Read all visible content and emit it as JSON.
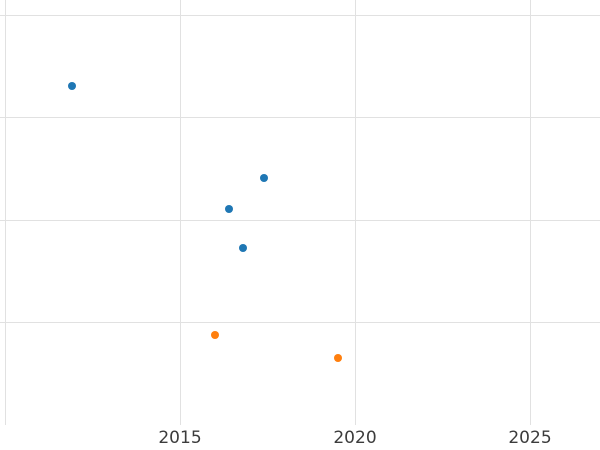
{
  "chart_data": {
    "type": "scatter",
    "title": "",
    "xlabel": "",
    "ylabel": "",
    "grid": true,
    "legend": "none",
    "xlim": [
      2009.857,
      2027.0
    ],
    "ylim": [
      0,
      4.146
    ],
    "x_gridlines": [
      2010,
      2015,
      2020,
      2025
    ],
    "y_gridlines": [
      1,
      2,
      3,
      4
    ],
    "xticks": [
      {
        "value": 2015,
        "label": "2015"
      },
      {
        "value": 2020,
        "label": "2020"
      },
      {
        "value": 2025,
        "label": "2025"
      }
    ],
    "yticks": [],
    "series": [
      {
        "name": "blue-series",
        "color": "#1f77b4",
        "points": [
          {
            "x": 2011.9,
            "y": 3.31
          },
          {
            "x": 2016.4,
            "y": 2.11
          },
          {
            "x": 2016.8,
            "y": 1.73
          },
          {
            "x": 2017.4,
            "y": 2.41
          }
        ]
      },
      {
        "name": "orange-series",
        "color": "#ff7f0e",
        "points": [
          {
            "x": 2016.0,
            "y": 0.88
          },
          {
            "x": 2019.5,
            "y": 0.65
          }
        ]
      }
    ],
    "colors": {
      "grid": "#e1e1e1",
      "tick_label": "#3c3c3c",
      "background": "#ffffff"
    }
  }
}
